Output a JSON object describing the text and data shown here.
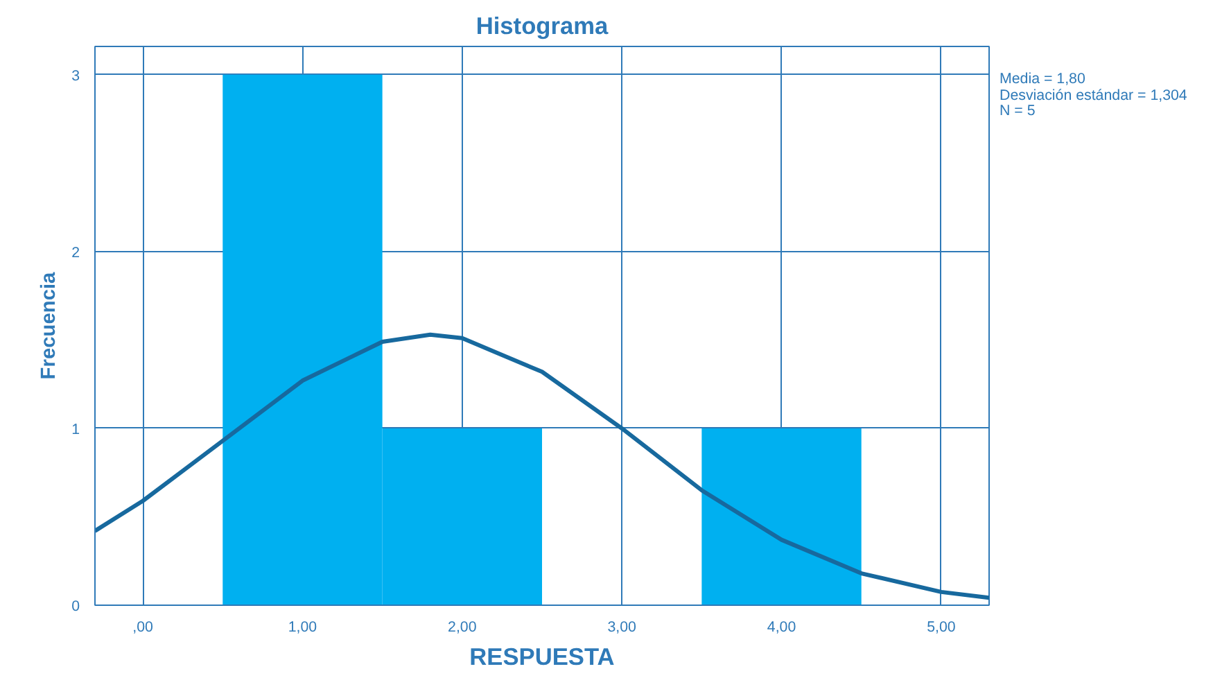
{
  "chart_data": {
    "type": "histogram",
    "title": "Histograma",
    "xlabel": "RESPUESTA",
    "ylabel": "Frecuencia",
    "bins": [
      0.5,
      1.5,
      2.5,
      3.5,
      4.5
    ],
    "values": [
      3,
      1,
      0,
      1
    ],
    "color": "#00b0f0",
    "series": [
      {
        "type": "line",
        "color": "#17699e",
        "x": [
          -0.3,
          0,
          0.5,
          1,
          1.5,
          1.8,
          2,
          2.5,
          3,
          3.5,
          4,
          4.5,
          5,
          5.3
        ],
        "values": [
          0.42,
          0.59,
          0.93,
          1.27,
          1.49,
          1.53,
          1.51,
          1.32,
          1.0,
          0.65,
          0.37,
          0.18,
          0.075,
          0.042
        ]
      }
    ],
    "xlim": [
      -0.3,
      5.3
    ],
    "xticks": [
      {
        "value": 0,
        "label": ",00"
      },
      {
        "value": 1,
        "label": "1,00"
      },
      {
        "value": 2,
        "label": "2,00"
      },
      {
        "value": 3,
        "label": "3,00"
      },
      {
        "value": 4,
        "label": "4,00"
      },
      {
        "value": 5,
        "label": "5,00"
      }
    ],
    "ylim": [
      0,
      3.16
    ],
    "yticks": [
      0,
      1,
      2,
      3
    ],
    "grid": true,
    "annotations": [
      "Media = 1,80",
      "Desviación estándar = 1,304",
      "N = 5"
    ]
  }
}
